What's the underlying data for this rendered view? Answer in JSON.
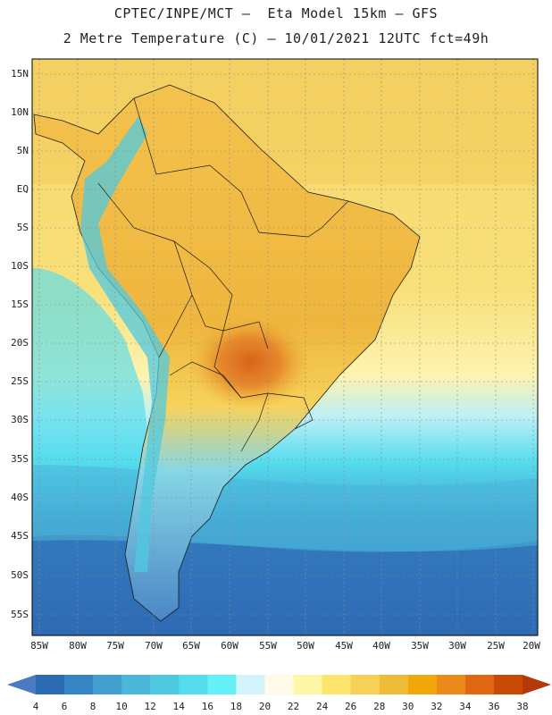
{
  "title_line1": "CPTEC/INPE/MCT –  Eta Model 15km – GFS",
  "title_line2": "2 Metre Temperature (C) – 10/01/2021 12UTC fct=49h",
  "lat_labels": [
    "15N",
    "10N",
    "5N",
    "EQ",
    "5S",
    "10S",
    "15S",
    "20S",
    "25S",
    "30S",
    "35S",
    "40S",
    "45S",
    "50S",
    "55S"
  ],
  "lon_labels": [
    "85W",
    "80W",
    "75W",
    "70W",
    "65W",
    "60W",
    "55W",
    "50W",
    "45W",
    "40W",
    "35W",
    "30W",
    "25W",
    "20W"
  ],
  "colorbar": {
    "labels": [
      "4",
      "6",
      "8",
      "10",
      "12",
      "14",
      "16",
      "18",
      "20",
      "22",
      "24",
      "26",
      "28",
      "30",
      "32",
      "34",
      "36",
      "38"
    ],
    "colors": [
      "#4a7bc0",
      "#2e6bb5",
      "#3585c4",
      "#41a0d0",
      "#4ab7db",
      "#4fc9e2",
      "#55dced",
      "#64f2f8",
      "#d2f4fa",
      "#fffbe8",
      "#fdf6a6",
      "#fde56d",
      "#f7d157",
      "#efbc3a",
      "#f2a80a",
      "#ec8b1c",
      "#e06712",
      "#c94a05",
      "#b5380a"
    ]
  },
  "regions": {
    "ocean_north": "warm ocean 26-28C",
    "ocean_south": "cold ocean 6-14C"
  }
}
